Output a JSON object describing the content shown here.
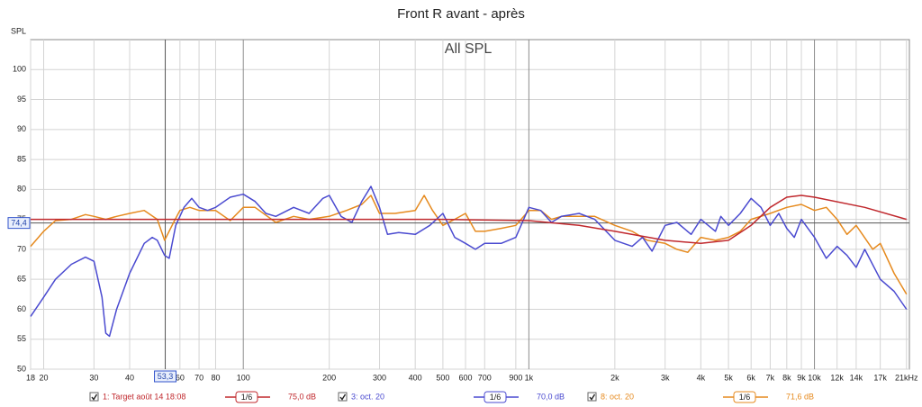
{
  "chart_data": {
    "type": "line",
    "title": "Front R avant - après",
    "subtitle": "All SPL",
    "y_label": "SPL",
    "xlog": true,
    "grid": true,
    "xlim": [
      18,
      21500
    ],
    "ylim": [
      50,
      105
    ],
    "yticks": [
      50,
      55,
      60,
      65,
      70,
      75,
      80,
      85,
      90,
      95,
      100
    ],
    "xticks": [
      18,
      20,
      30,
      40,
      60,
      70,
      80,
      100,
      200,
      300,
      400,
      500,
      600,
      700,
      900,
      {
        "value": 1000,
        "label": "1k"
      },
      {
        "value": 2000,
        "label": "2k"
      },
      {
        "value": 3000,
        "label": "3k"
      },
      {
        "value": 4000,
        "label": "4k"
      },
      {
        "value": 5000,
        "label": "5k"
      },
      {
        "value": 6000,
        "label": "6k"
      },
      {
        "value": 7000,
        "label": "7k"
      },
      {
        "value": 8000,
        "label": "8k"
      },
      {
        "value": 9000,
        "label": "9k"
      },
      {
        "value": 10000,
        "label": "10k"
      },
      {
        "value": 12000,
        "label": "12k"
      },
      {
        "value": 14000,
        "label": "14k"
      },
      {
        "value": 17000,
        "label": "17k"
      },
      {
        "value": 21000,
        "label": "21kHz"
      }
    ],
    "cursor": {
      "x": {
        "value": 53.3,
        "label": "53,3"
      },
      "y": {
        "value": 74.4,
        "label": "74,4"
      }
    },
    "series": [
      {
        "name": "1: Target août 14 18:08",
        "color": "#c0282d",
        "smoothing": "1/6",
        "offset_label": "75,0 dB",
        "x": [
          18,
          500,
          1000,
          1500,
          2000,
          3000,
          4000,
          5000,
          6000,
          7000,
          8000,
          9000,
          10000,
          15000,
          21000
        ],
        "values": [
          75,
          75,
          74.8,
          74,
          73,
          71.5,
          71,
          71.5,
          74,
          77,
          78.7,
          79,
          78.7,
          77,
          75
        ]
      },
      {
        "name": "3: oct. 20",
        "color": "#4a4ad0",
        "smoothing": "1/6",
        "offset_label": "70,0 dB",
        "x": [
          18,
          20,
          22,
          25,
          28,
          30,
          32,
          33,
          34,
          36,
          40,
          45,
          48,
          50,
          53,
          55,
          58,
          62,
          66,
          70,
          75,
          80,
          90,
          100,
          110,
          120,
          130,
          150,
          170,
          190,
          200,
          220,
          240,
          260,
          280,
          300,
          320,
          350,
          400,
          450,
          500,
          550,
          600,
          650,
          700,
          800,
          900,
          1000,
          1100,
          1200,
          1300,
          1500,
          1700,
          2000,
          2300,
          2500,
          2700,
          3000,
          3300,
          3700,
          4000,
          4500,
          4700,
          5000,
          5500,
          6000,
          6500,
          7000,
          7500,
          8000,
          8500,
          9000,
          10000,
          11000,
          12000,
          13000,
          14000,
          15000,
          17000,
          19000,
          21000
        ],
        "values": [
          58.8,
          62,
          65,
          67.5,
          68.7,
          68,
          62,
          56,
          55.5,
          60,
          66,
          71,
          72,
          71.5,
          69,
          68.5,
          74,
          77,
          78.5,
          77,
          76.5,
          77,
          78.7,
          79.2,
          78,
          76,
          75.5,
          77,
          76,
          78.5,
          79,
          75.5,
          74.5,
          78,
          80.5,
          77,
          72.5,
          72.8,
          72.5,
          74,
          76,
          72,
          71,
          70,
          71,
          71,
          72,
          77,
          76.5,
          74.5,
          75.5,
          76,
          75,
          71.5,
          70.5,
          72,
          69.7,
          74,
          74.5,
          72.5,
          75,
          73,
          75.5,
          74,
          76,
          78.5,
          77,
          74,
          76,
          73.5,
          72,
          75,
          72,
          68.5,
          70.5,
          69,
          67,
          70,
          65,
          63,
          60
        ]
      },
      {
        "name": "8: oct. 20",
        "color": "#e68a1e",
        "smoothing": "1/6",
        "offset_label": "71,6 dB",
        "x": [
          18,
          20,
          22,
          25,
          28,
          30,
          33,
          36,
          40,
          45,
          50,
          53,
          57,
          60,
          65,
          70,
          80,
          90,
          100,
          110,
          130,
          150,
          170,
          200,
          230,
          260,
          280,
          300,
          340,
          400,
          430,
          460,
          500,
          550,
          600,
          650,
          700,
          800,
          900,
          1000,
          1100,
          1200,
          1300,
          1500,
          1700,
          2000,
          2300,
          2600,
          3000,
          3300,
          3600,
          4000,
          4500,
          5000,
          5500,
          6000,
          7000,
          8000,
          9000,
          10000,
          11000,
          12000,
          13000,
          14000,
          16000,
          17000,
          19000,
          21000
        ],
        "values": [
          70.5,
          73,
          74.8,
          75,
          75.8,
          75.5,
          75,
          75.5,
          76,
          76.5,
          75,
          71.5,
          74.5,
          76.5,
          77,
          76.5,
          76.5,
          74.8,
          77,
          77,
          74.5,
          75.5,
          75,
          75.5,
          76.5,
          77.5,
          79,
          76,
          76,
          76.5,
          79,
          76.5,
          74,
          75,
          76,
          73,
          73,
          73.5,
          74,
          76.5,
          76.5,
          75,
          75.5,
          75.5,
          75.5,
          74,
          73,
          71.5,
          71,
          70,
          69.5,
          72,
          71.5,
          72,
          73,
          75,
          76,
          77,
          77.5,
          76.5,
          77,
          75,
          72.5,
          74,
          70,
          71,
          66,
          62.5
        ]
      }
    ]
  }
}
